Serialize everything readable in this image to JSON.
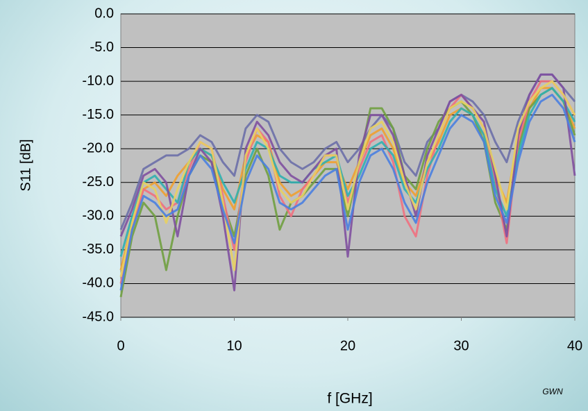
{
  "chart_data": {
    "type": "line",
    "y_label": "S11 [dB]",
    "x_label": "f [GHz]",
    "annotation": "GWN",
    "x": [
      0,
      1,
      2,
      3,
      4,
      5,
      6,
      7,
      8,
      9,
      10,
      11,
      12,
      13,
      14,
      15,
      16,
      17,
      18,
      19,
      20,
      21,
      22,
      23,
      24,
      25,
      26,
      27,
      28,
      29,
      30,
      31,
      32,
      33,
      34,
      35,
      36,
      37,
      38,
      39,
      40
    ],
    "xlim": [
      0,
      40
    ],
    "xticks": [
      0,
      10,
      20,
      30,
      40
    ],
    "ylim": [
      -45,
      0
    ],
    "yticks": [
      {
        "value": 0,
        "label": "0.0"
      },
      {
        "value": -5,
        "label": "-5.0"
      },
      {
        "value": -10,
        "label": "-10.0"
      },
      {
        "value": -15,
        "label": "-15.0"
      },
      {
        "value": -20,
        "label": "-20.0"
      },
      {
        "value": -25,
        "label": "-25.0"
      },
      {
        "value": -30,
        "label": "-30.0"
      },
      {
        "value": -35,
        "label": "-35.0"
      },
      {
        "value": -40,
        "label": "-40.0"
      },
      {
        "value": -45,
        "label": "-45.0"
      }
    ],
    "grid": true,
    "series": [
      {
        "color": "#6b6fa8",
        "values": [
          -32,
          -28,
          -23,
          -22,
          -21,
          -21,
          -20,
          -18,
          -19,
          -22,
          -24,
          -17,
          -15,
          -16,
          -20,
          -22,
          -23,
          -22,
          -20,
          -19,
          -22,
          -20,
          -17,
          -15,
          -17,
          -22,
          -24,
          -19,
          -17,
          -13,
          -12,
          -13,
          -15,
          -19,
          -22,
          -16,
          -12,
          -9,
          -9,
          -11,
          -13
        ]
      },
      {
        "color": "#f0a030",
        "values": [
          -38,
          -31,
          -26,
          -25,
          -27,
          -24,
          -22,
          -20,
          -21,
          -26,
          -29,
          -21,
          -18,
          -19,
          -25,
          -27,
          -26,
          -24,
          -22,
          -22,
          -26,
          -22,
          -18,
          -17,
          -20,
          -25,
          -27,
          -22,
          -19,
          -15,
          -14,
          -15,
          -18,
          -24,
          -28,
          -18,
          -14,
          -11,
          -11,
          -13,
          -17
        ]
      },
      {
        "color": "#70a040",
        "values": [
          -42,
          -33,
          -28,
          -30,
          -38,
          -30,
          -24,
          -21,
          -22,
          -28,
          -33,
          -24,
          -20,
          -24,
          -32,
          -28,
          -27,
          -25,
          -23,
          -23,
          -30,
          -22,
          -14,
          -14,
          -17,
          -24,
          -26,
          -20,
          -16,
          -14,
          -13,
          -15,
          -19,
          -28,
          -32,
          -20,
          -14,
          -12,
          -11,
          -13,
          -18
        ]
      },
      {
        "color": "#f07080",
        "values": [
          -40,
          -32,
          -26,
          -27,
          -29,
          -28,
          -23,
          -19,
          -20,
          -27,
          -35,
          -22,
          -17,
          -19,
          -27,
          -30,
          -26,
          -24,
          -21,
          -21,
          -28,
          -23,
          -19,
          -18,
          -22,
          -30,
          -33,
          -24,
          -18,
          -14,
          -12,
          -14,
          -17,
          -25,
          -34,
          -19,
          -13,
          -10,
          -10,
          -12,
          -15
        ]
      },
      {
        "color": "#30b0b0",
        "values": [
          -36,
          -30,
          -25,
          -24,
          -26,
          -28,
          -22,
          -20,
          -21,
          -25,
          -28,
          -23,
          -19,
          -20,
          -24,
          -25,
          -25,
          -23,
          -22,
          -21,
          -27,
          -24,
          -20,
          -19,
          -21,
          -26,
          -28,
          -23,
          -20,
          -16,
          -14,
          -15,
          -18,
          -26,
          -30,
          -21,
          -15,
          -12,
          -11,
          -13,
          -16
        ]
      },
      {
        "color": "#8050a0",
        "values": [
          -33,
          -29,
          -24,
          -23,
          -25,
          -33,
          -24,
          -20,
          -22,
          -30,
          -41,
          -20,
          -16,
          -18,
          -22,
          -24,
          -25,
          -23,
          -21,
          -20,
          -36,
          -21,
          -15,
          -15,
          -18,
          -24,
          -30,
          -21,
          -17,
          -13,
          -12,
          -14,
          -16,
          -24,
          -33,
          -18,
          -12,
          -9,
          -9,
          -11,
          -24
        ]
      },
      {
        "color": "#e8d060",
        "values": [
          -39,
          -31,
          -25,
          -26,
          -31,
          -26,
          -22,
          -19,
          -20,
          -28,
          -38,
          -21,
          -17,
          -20,
          -26,
          -28,
          -27,
          -24,
          -21,
          -21,
          -29,
          -22,
          -17,
          -16,
          -19,
          -25,
          -29,
          -22,
          -18,
          -14,
          -13,
          -14,
          -17,
          -23,
          -29,
          -17,
          -13,
          -11,
          -10,
          -12,
          -15
        ]
      },
      {
        "color": "#4a80e0",
        "values": [
          -41,
          -32,
          -27,
          -28,
          -30,
          -29,
          -24,
          -21,
          -23,
          -29,
          -34,
          -25,
          -21,
          -23,
          -28,
          -29,
          -28,
          -26,
          -24,
          -23,
          -32,
          -25,
          -21,
          -20,
          -23,
          -28,
          -31,
          -25,
          -21,
          -17,
          -15,
          -16,
          -19,
          -27,
          -31,
          -22,
          -16,
          -13,
          -12,
          -14,
          -19
        ]
      }
    ]
  }
}
